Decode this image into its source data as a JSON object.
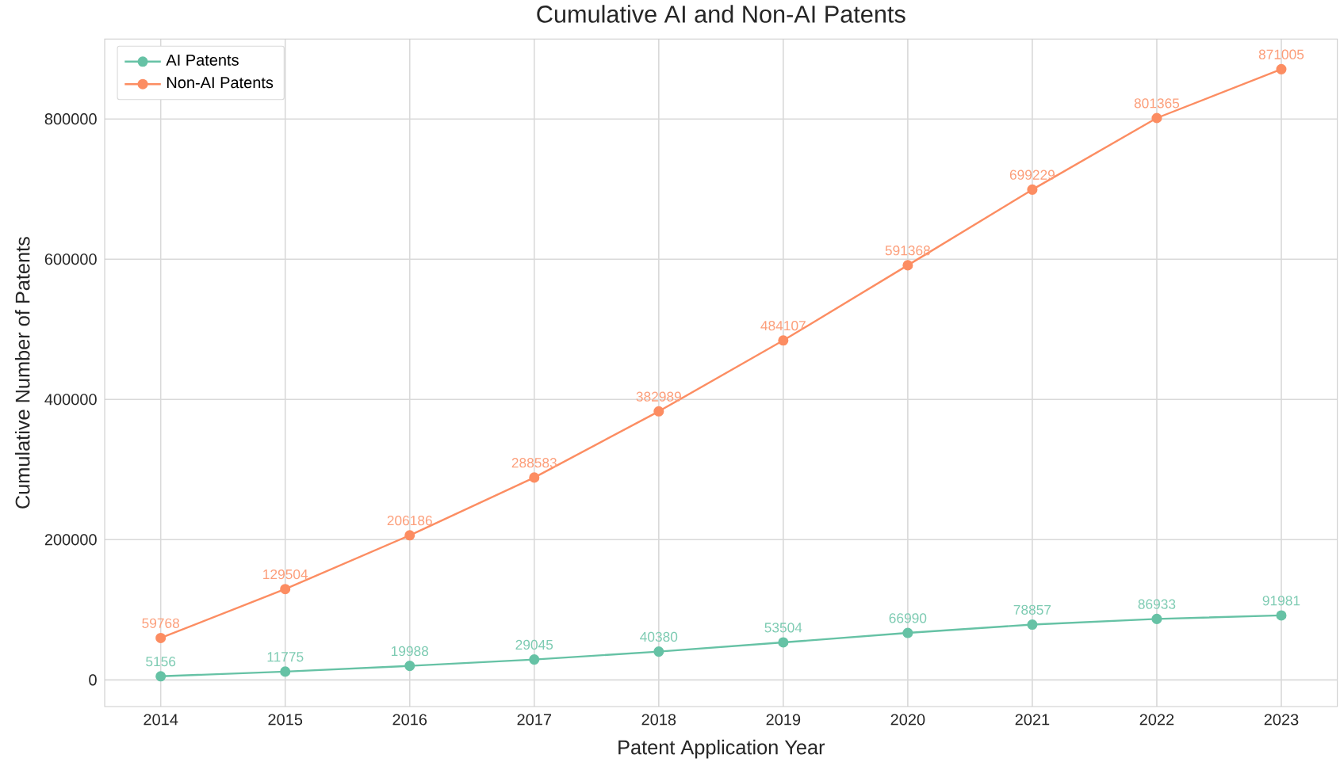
{
  "chart_data": {
    "type": "line",
    "title": "Cumulative AI and Non-AI Patents",
    "xlabel": "Patent Application Year",
    "ylabel": "Cumulative Number of Patents",
    "x": [
      2014,
      2015,
      2016,
      2017,
      2018,
      2019,
      2020,
      2021,
      2022,
      2023
    ],
    "series": [
      {
        "name": "AI Patents",
        "color": "#66c2a5",
        "values": [
          5156,
          11775,
          19988,
          29045,
          40380,
          53504,
          66990,
          78857,
          86933,
          91981
        ]
      },
      {
        "name": "Non-AI Patents",
        "color": "#fc8d62",
        "values": [
          59768,
          129504,
          206186,
          288583,
          382989,
          484107,
          591368,
          699229,
          801365,
          871005
        ]
      }
    ],
    "xlim": [
      2013.55,
      2023.45
    ],
    "ylim": [
      -38000,
      914000
    ],
    "xticks": [
      2014,
      2015,
      2016,
      2017,
      2018,
      2019,
      2020,
      2021,
      2022,
      2023
    ],
    "yticks": [
      0,
      200000,
      400000,
      600000,
      800000
    ],
    "grid": true,
    "legend": "top left",
    "marker": "circle",
    "line_style": "solid",
    "data_labels": true
  }
}
